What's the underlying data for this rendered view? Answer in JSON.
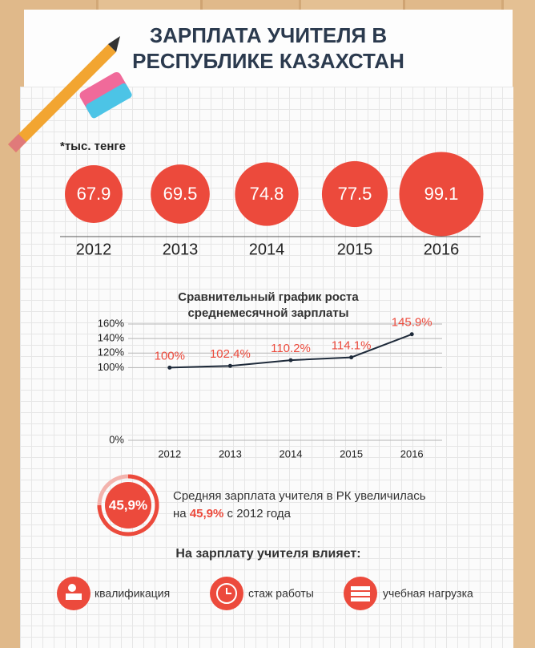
{
  "title": [
    "ЗАРПЛАТА УЧИТЕЛЯ В",
    "РЕСПУБЛИКЕ КАЗАХСТАН"
  ],
  "chart_data": [
    {
      "type": "bubble",
      "note": "*тыс. тенге",
      "categories": [
        "2012",
        "2013",
        "2014",
        "2015",
        "2016"
      ],
      "values": [
        67.9,
        69.5,
        74.8,
        77.5,
        99.1
      ],
      "color": "#ec4a3c"
    },
    {
      "type": "line",
      "title": [
        "Сравнительный график роста",
        "среднемесячной зарплаты"
      ],
      "categories": [
        "2012",
        "2013",
        "2014",
        "2015",
        "2016"
      ],
      "values": [
        100,
        102.4,
        110.2,
        114.1,
        145.9
      ],
      "value_labels": [
        "100%",
        "102.4%",
        "110.2%",
        "114.1%",
        "145.9%"
      ],
      "ylim": [
        0,
        160
      ],
      "yticks": [
        {
          "value": 0,
          "label": "0%"
        },
        {
          "value": 100,
          "label": "100%"
        },
        {
          "value": 120,
          "label": "120%"
        },
        {
          "value": 140,
          "label": "140%"
        },
        {
          "value": 160,
          "label": "160%"
        }
      ],
      "grid": true,
      "color": "#1e2a3a",
      "label_color": "#ec4a3c"
    }
  ],
  "summary": {
    "badge": "45,9%",
    "line1": "Средняя зарплата учителя в РК увеличилась",
    "prefix": "на",
    "highlight": "45,9%",
    "suffix": "с 2012 года"
  },
  "factors": {
    "title": "На зарплату учителя влияет:",
    "items": [
      "квалификация",
      "стаж работы",
      "учебная нагрузка"
    ]
  }
}
